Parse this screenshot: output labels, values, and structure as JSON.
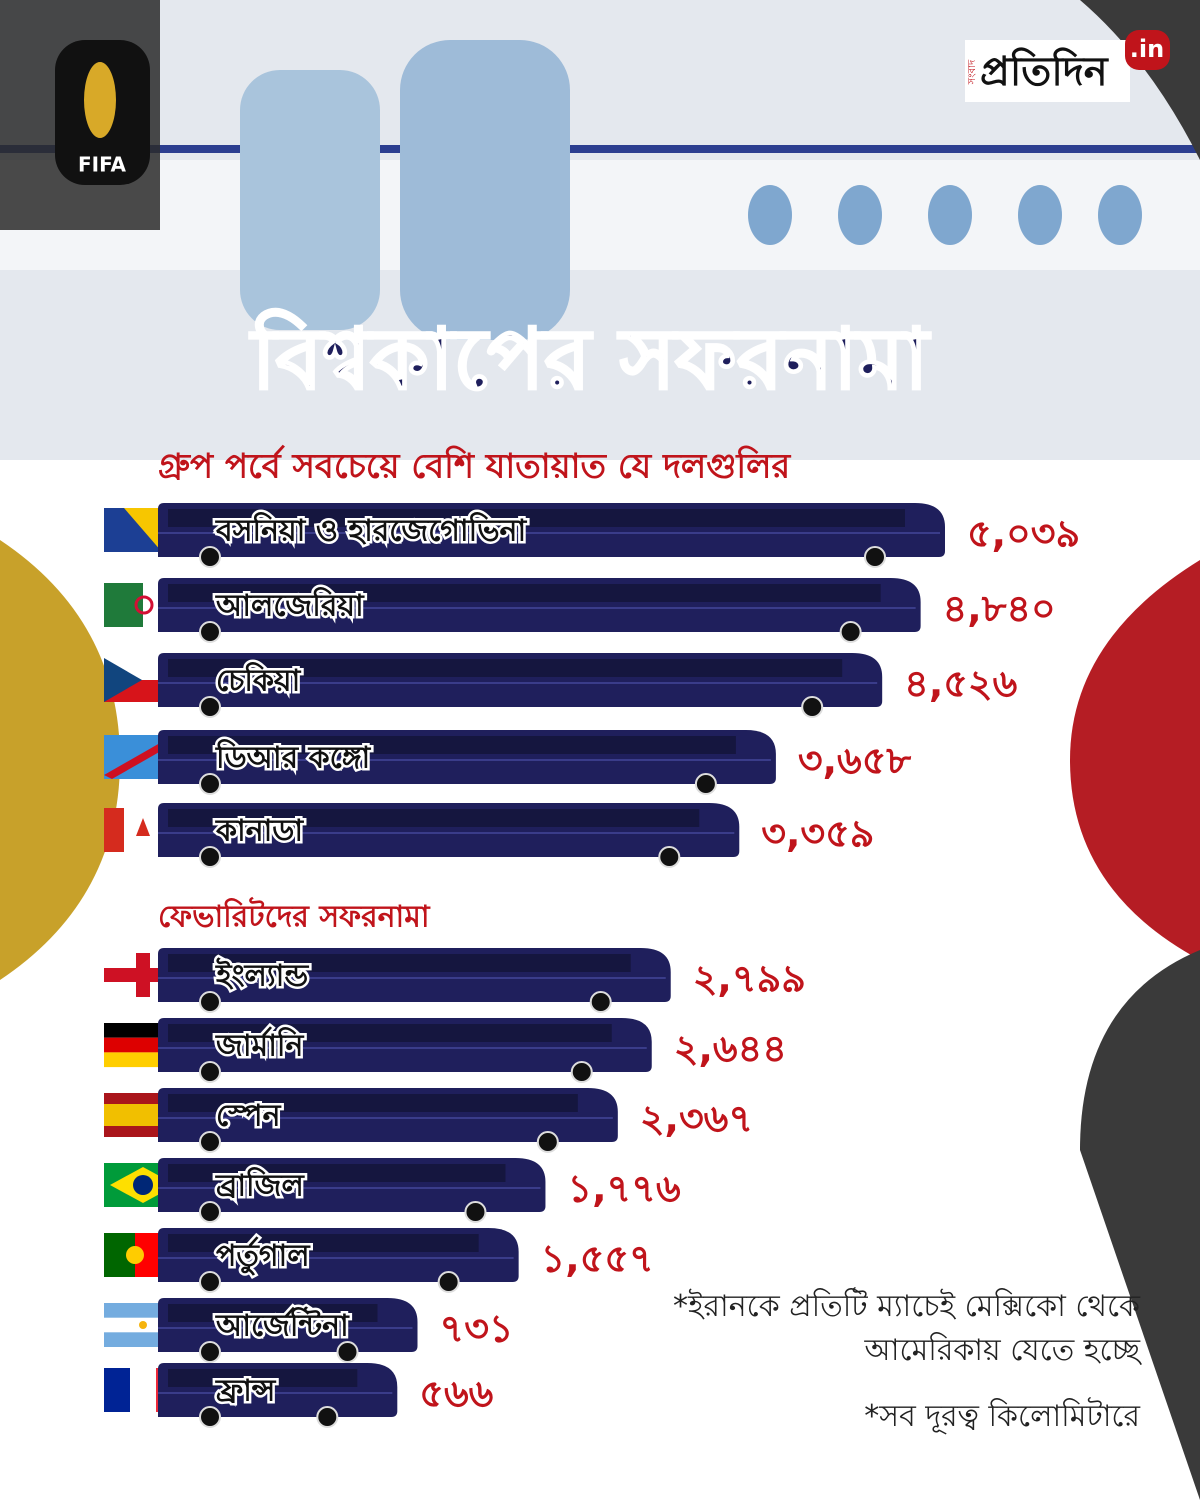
{
  "header": {
    "brand": "প্রতিদিন",
    "brand_prefix": "সংবাদ",
    "brand_suffix": ".in",
    "badge": "FIFA",
    "title": "বিশ্বকাপের সফরনামা"
  },
  "chart_data": [
    {
      "type": "bar",
      "title": "গ্রুপ পর্বে সবচেয়ে বেশি যাতায়াত যে দলগুলির",
      "color": "#1f1f5c",
      "categories": [
        "বসনিয়া ও হারজেগোভিনা",
        "আলজেরিয়া",
        "চেকিয়া",
        "ডিআর কঙ্গো",
        "কানাডা"
      ],
      "values": [
        5039,
        4840,
        4526,
        3658,
        3359
      ],
      "value_labels": [
        "৫,০৩৯",
        "৪,৮৪০",
        "৪,৫২৬",
        "৩,৬৫৮",
        "৩,৩৫৯"
      ]
    },
    {
      "type": "bar",
      "title": "ফেভারিটদের সফরনামা",
      "color": "#1f1f5c",
      "categories": [
        "ইংল্যান্ড",
        "জার্মানি",
        "স্পেন",
        "ব্রাজিল",
        "পর্তুগাল",
        "আর্জেন্টিনা",
        "ফ্রান্স"
      ],
      "values": [
        2799,
        2644,
        2367,
        1776,
        1557,
        731,
        566
      ],
      "value_labels": [
        "২,৭৯৯",
        "২,৬৪৪",
        "২,৩৬৭",
        "১,৭৭৬",
        "১,৫৫৭",
        "৭৩১",
        "৫৬৬"
      ]
    }
  ],
  "notes": [
    "*ইরানকে প্রতিটি ম্যাচেই মেক্সিকো থেকে আমেরিকায় যেতে হচ্ছে",
    "*সব দূরত্ব কিলোমিটারে"
  ]
}
